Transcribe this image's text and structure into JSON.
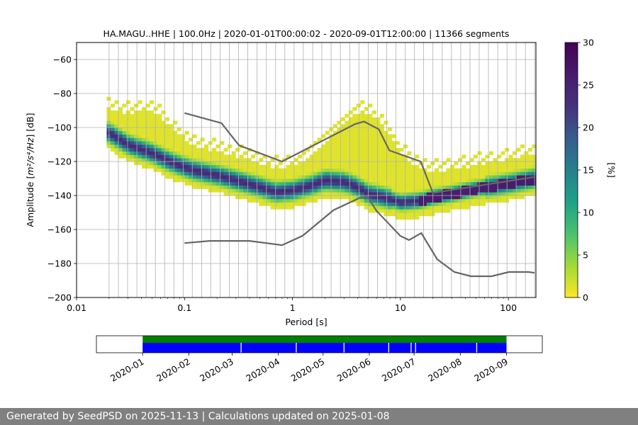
{
  "chart_data": [
    {
      "type": "heatmap",
      "title": "HA.MAGU..HHE | 100.0Hz | 2020-01-01T00:00:02 - 2020-09-01T12:00:00 | 11366 segments",
      "xlabel": "Period [s]",
      "ylabel_prefix": "Amplitude [",
      "ylabel_math": "m²/s⁴/Hz",
      "ylabel_suffix": "] [dB]",
      "x_scale": "log",
      "xlim": [
        0.01,
        180
      ],
      "ylim": [
        -200,
        -50
      ],
      "x_ticks": [
        {
          "value": 0.01,
          "label": "0.01"
        },
        {
          "value": 0.1,
          "label": "0.1"
        },
        {
          "value": 1,
          "label": "1"
        },
        {
          "value": 10,
          "label": "10"
        },
        {
          "value": 100,
          "label": "100"
        }
      ],
      "y_ticks": [
        {
          "value": -60,
          "label": "−60"
        },
        {
          "value": -80,
          "label": "−80"
        },
        {
          "value": -100,
          "label": "−100"
        },
        {
          "value": -120,
          "label": "−120"
        },
        {
          "value": -140,
          "label": "−140"
        },
        {
          "value": -160,
          "label": "−160"
        },
        {
          "value": -180,
          "label": "−180"
        },
        {
          "value": -200,
          "label": "−200"
        }
      ],
      "period_gridlines": [
        0.02,
        0.0244,
        0.0297,
        0.0362,
        0.0441,
        0.0537,
        0.0654,
        0.0797,
        0.0971,
        0.118,
        0.144,
        0.175,
        0.214,
        0.26,
        0.317,
        0.386,
        0.47,
        0.573,
        0.698,
        0.85,
        1.035,
        1.26,
        1.54,
        1.87,
        2.28,
        2.78,
        3.39,
        4.13,
        5.03,
        6.13,
        7.46,
        9.09,
        11.1,
        13.5,
        16.4,
        20.0,
        24.4,
        29.7,
        36.2,
        44.1,
        53.7,
        65.4,
        79.7,
        97.1,
        118,
        144,
        175
      ],
      "density_ridge": {
        "period": [
          0.02,
          0.03,
          0.05,
          0.08,
          0.12,
          0.2,
          0.3,
          0.5,
          0.7,
          1.0,
          1.5,
          2.0,
          3.0,
          4.0,
          5.0,
          6.0,
          7.0,
          8.0,
          10.0,
          15.0,
          20.0,
          30.0,
          50.0,
          100.0,
          175.0
        ],
        "mode_db": [
          -103,
          -110,
          -115,
          -121,
          -125,
          -128,
          -131,
          -135,
          -138,
          -137,
          -134,
          -131,
          -132,
          -135,
          -139,
          -140,
          -141,
          -142,
          -144,
          -143,
          -141,
          -139,
          -136,
          -133,
          -130
        ]
      },
      "high_noise_model": {
        "period": [
          0.1,
          0.22,
          0.32,
          0.8,
          3.8,
          4.6,
          6.3,
          7.9,
          15.4,
          20.0,
          354.8
        ],
        "db": [
          -91.5,
          -97.4,
          -110.5,
          -120.0,
          -98.0,
          -96.5,
          -101.0,
          -113.5,
          -120.0,
          -138.5,
          -126.0
        ]
      },
      "low_noise_model": {
        "period": [
          0.1,
          0.17,
          0.4,
          0.8,
          1.24,
          2.4,
          4.3,
          5.0,
          6.0,
          10.0,
          12.0,
          15.6,
          21.9,
          31.6,
          45.0,
          70.0,
          101.0,
          154.0,
          175.0
        ],
        "db": [
          -168.0,
          -166.7,
          -166.7,
          -169.2,
          -163.7,
          -148.6,
          -141.1,
          -141.1,
          -149.0,
          -163.8,
          -166.2,
          -162.1,
          -177.5,
          -185.0,
          -187.5,
          -187.5,
          -185.0,
          -185.0,
          -185.5
        ]
      },
      "colorbar": {
        "label": "[%]",
        "range": [
          0,
          30
        ],
        "ticks": [
          {
            "value": 0,
            "label": "0"
          },
          {
            "value": 5,
            "label": "5"
          },
          {
            "value": 10,
            "label": "10"
          },
          {
            "value": 15,
            "label": "15"
          },
          {
            "value": 20,
            "label": "20"
          },
          {
            "value": 25,
            "label": "25"
          },
          {
            "value": 30,
            "label": "30"
          }
        ],
        "colormap": "viridis_r"
      }
    },
    {
      "type": "timeline",
      "xlim": [
        "2019-12-01",
        "2020-09-25"
      ],
      "x_ticks": [
        "2020-01",
        "2020-02",
        "2020-03",
        "2020-04",
        "2020-05",
        "2020-06",
        "2020-07",
        "2020-08",
        "2020-09"
      ],
      "coverage_start": "2020-01-01",
      "coverage_end": "2020-09-01",
      "gaps": [
        "2020-03-07",
        "2020-04-13",
        "2020-05-15",
        "2020-06-14",
        "2020-06-29",
        "2020-07-02",
        "2020-08-12"
      ],
      "colors": {
        "data": "#0000ff",
        "coverage": "#008000"
      }
    }
  ],
  "footer": {
    "text": "Generated by SeedPSD on 2025-11-13 | Calculations updated on 2025-01-08"
  }
}
